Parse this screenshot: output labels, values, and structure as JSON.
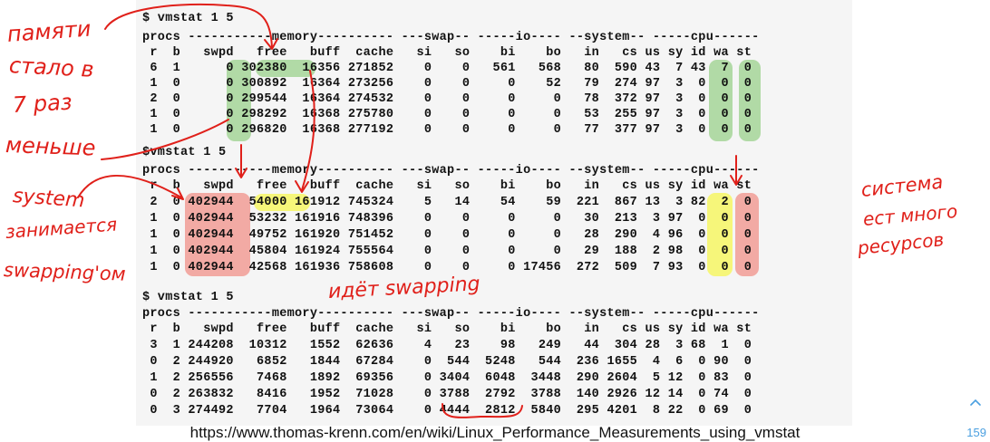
{
  "blocks": [
    {
      "command": "$ vmstat 1 5",
      "header1": "procs -----------memory---------- ---swap-- -----io---- --system-- -----cpu------",
      "header2": " r  b   swpd   free   buff  cache   si   so    bi    bo   in   cs us sy id wa st",
      "rows": [
        " 6  1      0 302380  16356 271852    0    0   561   568   80  590 43  7 43  7  0",
        " 1  0      0 300892  16364 273256    0    0     0    52   79  274 97  3  0  0  0",
        " 2  0      0 299544  16364 274532    0    0     0     0   78  372 97  3  0  0  0",
        " 1  0      0 298292  16368 275780    0    0     0     0   53  255 97  3  0  0  0",
        " 1  0      0 296820  16368 277192    0    0     0     0   77  377 97  3  0  0  0"
      ]
    },
    {
      "command": "$vmstat 1 5",
      "header1": "procs -----------memory---------- ---swap-- -----io---- --system-- -----cpu------",
      "header2": " r  b   swpd   free   buff  cache   si   so    bi    bo   in   cs us sy id wa st",
      "rows": [
        " 2  0 402944  54000 161912 745324    5   14    54    59  221  867 13  3 82  2  0",
        " 1  0 402944  53232 161916 748396    0    0     0     0   30  213  3 97  0  0  0",
        " 1  0 402944  49752 161920 751452    0    0     0     0   28  290  4 96  0  0  0",
        " 1  0 402944  45804 161924 755564    0    0     0     0   29  188  2 98  0  0  0",
        " 1  0 402944  42568 161936 758608    0    0     0 17456  272  509  7 93  0  0  0"
      ]
    },
    {
      "command": "$ vmstat 1 5",
      "header1": "procs -----------memory---------- ---swap-- -----io---- --system-- -----cpu------",
      "header2": " r  b   swpd   free   buff  cache   si   so    bi    bo   in   cs us sy id wa st",
      "rows": [
        " 3  1 244208  10312   1552  62636    4   23    98   249   44  304 28  3 68  1  0",
        " 0  2 244920   6852   1844  67284    0  544  5248   544  236 1655  4  6  0 90  0",
        " 1  2 256556   7468   1892  69356    0 3404  6048  3448  290 2604  5 12  0 83  0",
        " 0  2 263832   8416   1952  71028    0 3788  2792  3788  140 2926 12 14  0 74  0",
        " 0  3 274492   7704   1964  73064    0 4444  2812  5840  295 4201  8 22  0 69  0"
      ]
    }
  ],
  "annotations": {
    "left_note_1": [
      "памяти",
      "стало в",
      "7 раз",
      "меньше"
    ],
    "left_note_2": [
      "system",
      "занимается",
      "swapping'ом"
    ],
    "right_note": [
      "система",
      "ест много",
      "ресурсов"
    ],
    "middle_note": "идёт swapping"
  },
  "footer": {
    "url": "https://www.thomas-krenn.com/en/wiki/Linux_Performance_Measurements_using_vmstat",
    "page_number": "159"
  },
  "colors": {
    "annotation": "#e0201a",
    "highlight_green": "#78c364",
    "highlight_yellow": "#f5f550",
    "highlight_red": "#f0786e",
    "page_number": "#4a9fe0"
  }
}
